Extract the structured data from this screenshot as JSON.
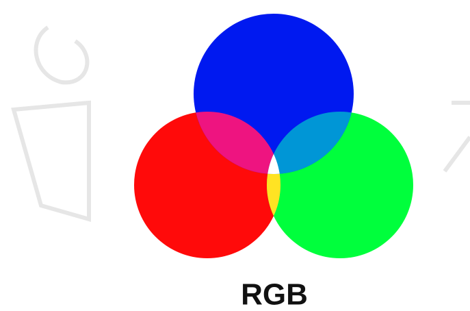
{
  "diagram": {
    "label": "RGB"
  }
}
